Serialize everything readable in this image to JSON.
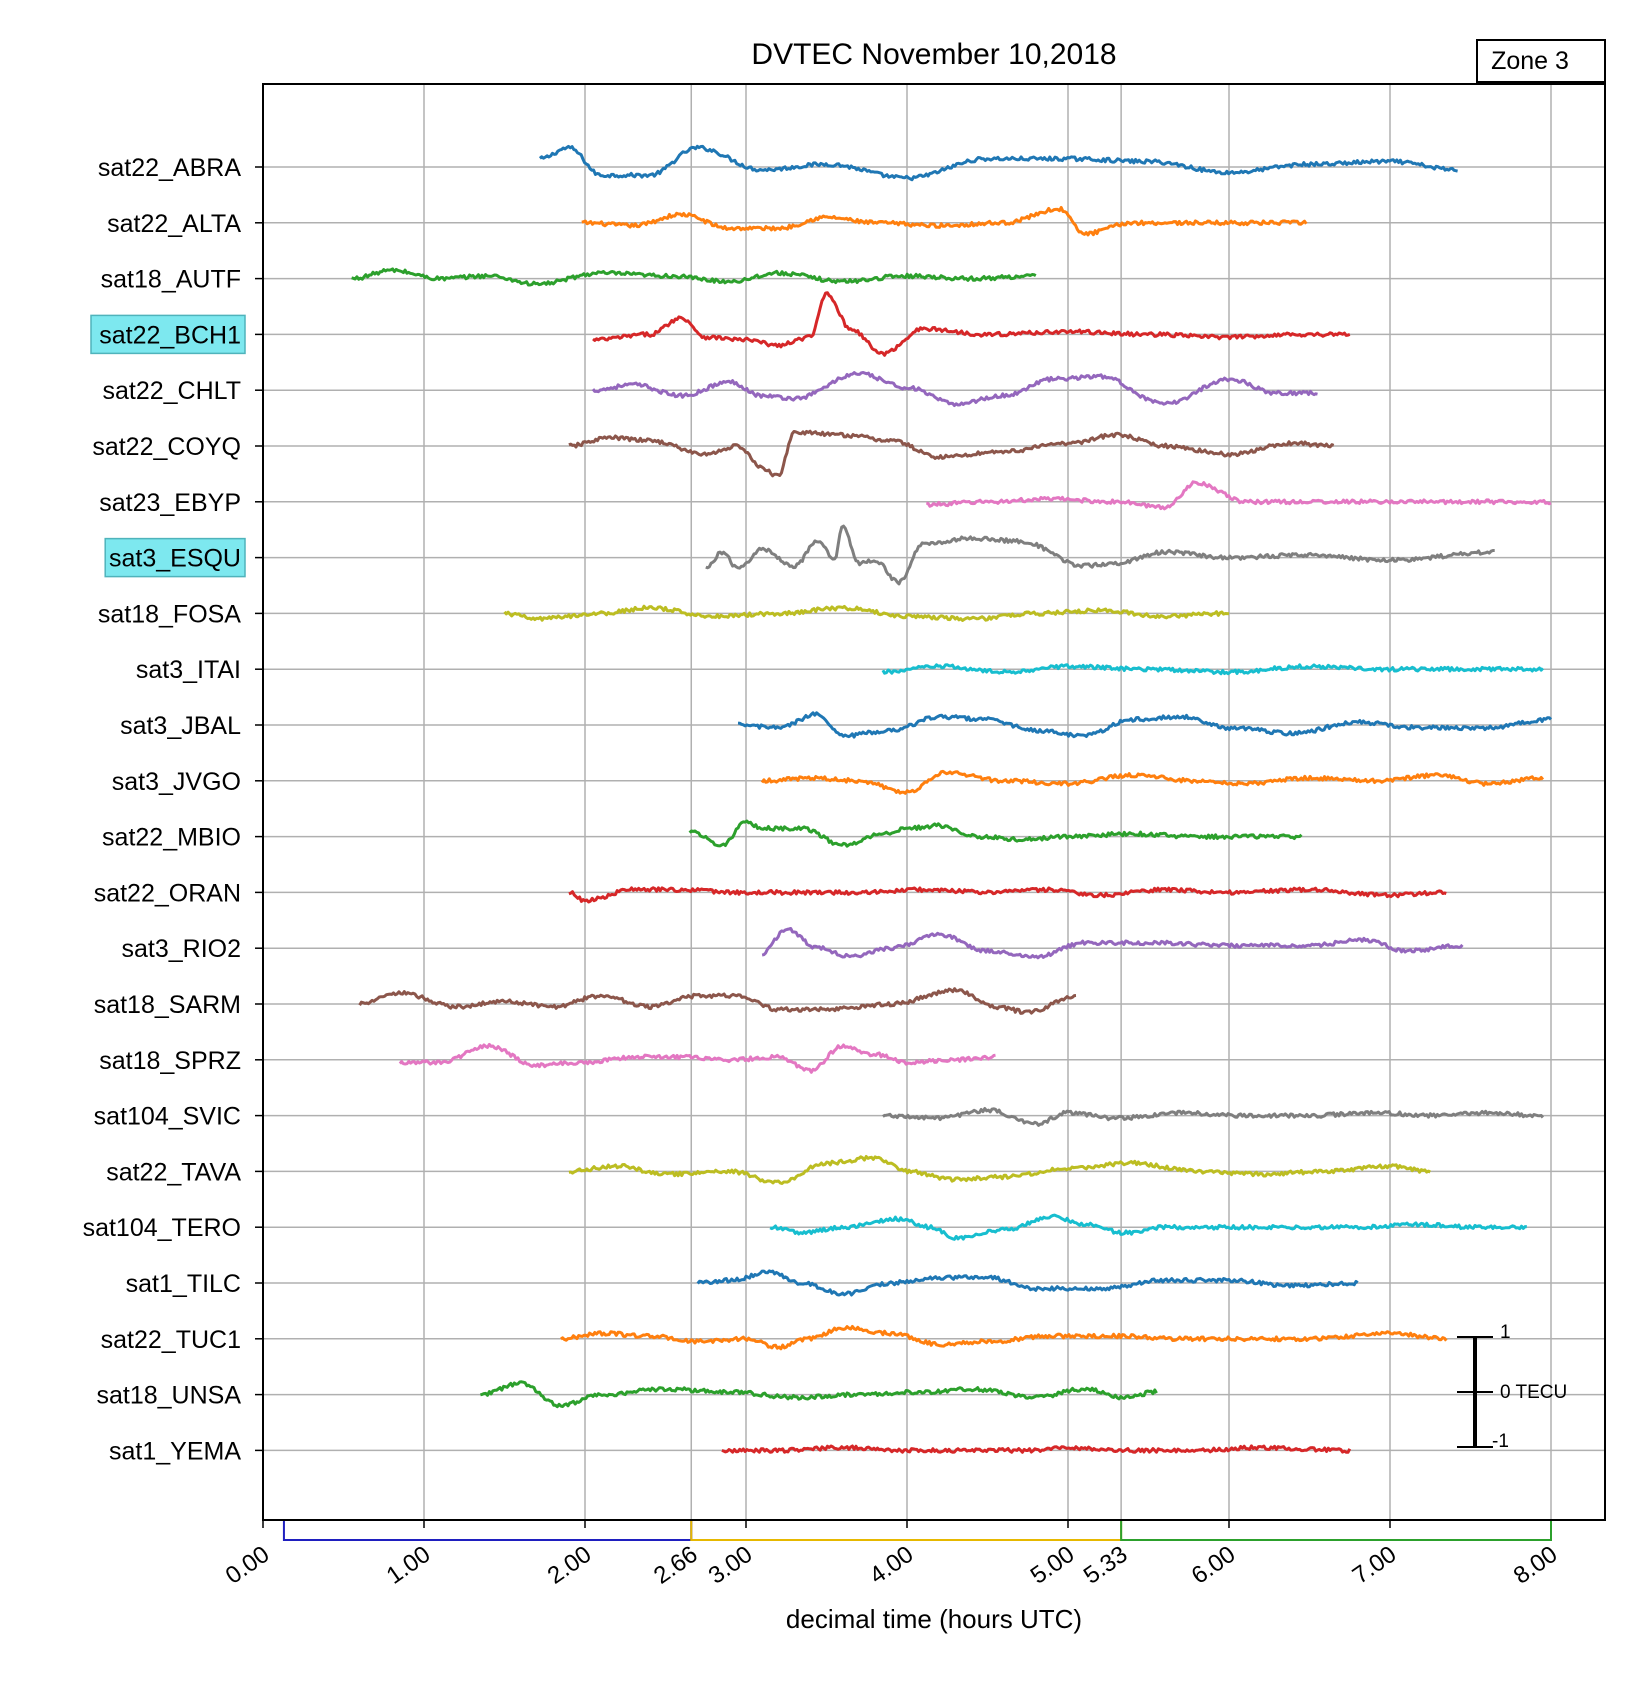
{
  "chart_data": {
    "type": "line",
    "title": "DVTEC November 10,2018",
    "zone_label": "Zone 3",
    "xlabel": "decimal time (hours UTC)",
    "xlim": [
      0,
      8
    ],
    "x_ticks": [
      "0.00",
      "1.00",
      "2.00",
      "2.66",
      "3.00",
      "4.00",
      "5.00",
      "5.33",
      "6.00",
      "7.00",
      "8.00"
    ],
    "grid": true,
    "period_brackets": [
      {
        "start": 0.13,
        "end": 2.66,
        "color": "#1f1fbf"
      },
      {
        "start": 2.66,
        "end": 5.33,
        "color": "#e6b800"
      },
      {
        "start": 5.33,
        "end": 8.0,
        "color": "#2ca02c"
      }
    ],
    "scale_bar": {
      "top_label": "1",
      "mid_label": "0 TECU",
      "bottom_label": "-1"
    },
    "series": [
      {
        "name": "sat22_ABRA",
        "highlight": false,
        "color": "#1f77b4",
        "x_range": [
          1.72,
          7.42
        ],
        "x": [
          1.72,
          1.9,
          2.1,
          2.4,
          2.7,
          3.1,
          3.5,
          4.0,
          4.5,
          5.0,
          5.5,
          6.0,
          6.5,
          7.0,
          7.42
        ],
        "y": [
          0.15,
          0.35,
          -0.15,
          -0.15,
          0.35,
          -0.05,
          0.05,
          -0.2,
          0.15,
          0.15,
          0.1,
          -0.1,
          0.05,
          0.1,
          -0.05
        ]
      },
      {
        "name": "sat22_ALTA",
        "highlight": false,
        "color": "#ff7f0e",
        "x_range": [
          1.98,
          6.48
        ],
        "x": [
          1.98,
          2.3,
          2.6,
          2.9,
          3.2,
          3.5,
          3.8,
          4.2,
          4.6,
          4.95,
          5.1,
          5.4,
          5.8,
          6.1,
          6.48
        ],
        "y": [
          0.0,
          -0.05,
          0.15,
          -0.1,
          -0.1,
          0.1,
          0.0,
          -0.05,
          0.0,
          0.25,
          -0.2,
          0.0,
          0.0,
          0.0,
          0.0
        ]
      },
      {
        "name": "sat18_AUTF",
        "highlight": false,
        "color": "#2ca02c",
        "x_range": [
          0.55,
          4.8
        ],
        "x": [
          0.55,
          0.8,
          1.1,
          1.4,
          1.7,
          2.1,
          2.5,
          2.9,
          3.2,
          3.6,
          4.0,
          4.4,
          4.8
        ],
        "y": [
          0.0,
          0.15,
          0.0,
          0.05,
          -0.1,
          0.1,
          0.05,
          -0.05,
          0.1,
          -0.05,
          0.05,
          0.0,
          0.05
        ]
      },
      {
        "name": "sat22_BCH1",
        "highlight": true,
        "color": "#d62728",
        "x_range": [
          2.05,
          6.75
        ],
        "x": [
          2.05,
          2.4,
          2.6,
          2.75,
          3.0,
          3.2,
          3.4,
          3.5,
          3.65,
          3.85,
          4.1,
          4.5,
          5.0,
          5.5,
          6.0,
          6.4,
          6.75
        ],
        "y": [
          -0.1,
          0.0,
          0.3,
          -0.05,
          -0.1,
          -0.2,
          -0.05,
          0.75,
          0.1,
          -0.35,
          0.1,
          0.0,
          0.05,
          0.0,
          -0.05,
          0.0,
          0.0
        ]
      },
      {
        "name": "sat22_CHLT",
        "highlight": false,
        "color": "#9467bd",
        "x_range": [
          2.05,
          6.55
        ],
        "x": [
          2.05,
          2.3,
          2.6,
          2.9,
          3.1,
          3.3,
          3.7,
          4.0,
          4.3,
          4.6,
          4.9,
          5.2,
          5.6,
          6.0,
          6.3,
          6.55
        ],
        "y": [
          0.0,
          0.1,
          -0.1,
          0.15,
          -0.1,
          -0.15,
          0.3,
          0.05,
          -0.25,
          -0.1,
          0.2,
          0.25,
          -0.25,
          0.2,
          -0.05,
          -0.05
        ]
      },
      {
        "name": "sat22_COYQ",
        "highlight": false,
        "color": "#8c564b",
        "x_range": [
          1.9,
          6.65
        ],
        "x": [
          1.9,
          2.15,
          2.4,
          2.75,
          2.95,
          3.1,
          3.2,
          3.3,
          3.6,
          3.9,
          4.2,
          4.6,
          5.0,
          5.3,
          5.6,
          6.0,
          6.4,
          6.65
        ],
        "y": [
          0.0,
          0.15,
          0.1,
          -0.15,
          0.0,
          -0.4,
          -0.55,
          0.25,
          0.2,
          0.1,
          -0.2,
          -0.1,
          0.05,
          0.2,
          0.0,
          -0.15,
          0.05,
          0.0
        ]
      },
      {
        "name": "sat23_EBYP",
        "highlight": false,
        "color": "#e377c2",
        "x_range": [
          4.12,
          8.0
        ],
        "x": [
          4.12,
          4.5,
          4.9,
          5.3,
          5.6,
          5.8,
          6.1,
          6.5,
          7.0,
          7.5,
          8.0
        ],
        "y": [
          -0.05,
          0.0,
          0.05,
          0.0,
          -0.1,
          0.35,
          0.0,
          0.0,
          0.0,
          0.0,
          0.0
        ]
      },
      {
        "name": "sat3_ESQU",
        "highlight": true,
        "color": "#7f7f7f",
        "x_range": [
          2.75,
          7.65
        ],
        "x": [
          2.75,
          2.85,
          2.95,
          3.1,
          3.3,
          3.45,
          3.55,
          3.6,
          3.7,
          3.8,
          3.95,
          4.1,
          4.4,
          4.7,
          5.1,
          5.3,
          5.6,
          6.0,
          6.5,
          7.0,
          7.65
        ],
        "y": [
          -0.2,
          0.1,
          -0.2,
          0.15,
          -0.15,
          0.3,
          -0.05,
          0.6,
          -0.1,
          -0.05,
          -0.45,
          0.25,
          0.35,
          0.3,
          -0.15,
          -0.1,
          0.1,
          0.0,
          0.05,
          -0.05,
          0.1
        ]
      },
      {
        "name": "sat18_FOSA",
        "highlight": false,
        "color": "#bcbd22",
        "x_range": [
          1.5,
          6.0
        ],
        "x": [
          1.5,
          1.7,
          2.1,
          2.4,
          2.8,
          3.2,
          3.6,
          4.0,
          4.4,
          4.8,
          5.2,
          5.6,
          6.0
        ],
        "y": [
          0.0,
          -0.1,
          0.0,
          0.1,
          -0.05,
          0.0,
          0.1,
          -0.05,
          -0.1,
          0.0,
          0.05,
          -0.05,
          0.0
        ]
      },
      {
        "name": "sat3_ITAI",
        "highlight": false,
        "color": "#17becf",
        "x_range": [
          3.85,
          7.95
        ],
        "x": [
          3.85,
          4.2,
          4.6,
          5.0,
          5.5,
          6.0,
          6.5,
          7.0,
          7.5,
          7.95
        ],
        "y": [
          -0.05,
          0.05,
          -0.05,
          0.05,
          0.0,
          -0.05,
          0.05,
          0.0,
          0.0,
          0.0
        ]
      },
      {
        "name": "sat3_JBAL",
        "highlight": false,
        "color": "#1f77b4",
        "x_range": [
          2.95,
          8.0
        ],
        "x": [
          2.95,
          3.2,
          3.45,
          3.6,
          3.9,
          4.2,
          4.5,
          4.8,
          5.1,
          5.4,
          5.7,
          6.0,
          6.4,
          6.8,
          7.2,
          7.6,
          8.0
        ],
        "y": [
          0.0,
          -0.05,
          0.2,
          -0.2,
          -0.1,
          0.15,
          0.1,
          -0.1,
          -0.2,
          0.1,
          0.15,
          -0.05,
          -0.15,
          0.05,
          -0.05,
          -0.05,
          0.1
        ]
      },
      {
        "name": "sat3_JVGO",
        "highlight": false,
        "color": "#ff7f0e",
        "x_range": [
          3.1,
          7.95
        ],
        "x": [
          3.1,
          3.4,
          3.7,
          4.0,
          4.25,
          4.6,
          5.0,
          5.4,
          5.8,
          6.1,
          6.5,
          6.9,
          7.3,
          7.6,
          7.95
        ],
        "y": [
          0.0,
          0.05,
          0.0,
          -0.2,
          0.15,
          0.0,
          -0.05,
          0.1,
          0.0,
          -0.05,
          0.05,
          0.0,
          0.1,
          -0.05,
          0.05
        ]
      },
      {
        "name": "sat22_MBIO",
        "highlight": false,
        "color": "#2ca02c",
        "x_range": [
          2.65,
          6.45
        ],
        "x": [
          2.65,
          2.85,
          3.0,
          3.1,
          3.35,
          3.6,
          3.85,
          4.0,
          4.2,
          4.45,
          4.7,
          5.0,
          5.4,
          5.8,
          6.1,
          6.45
        ],
        "y": [
          0.1,
          -0.15,
          0.25,
          0.15,
          0.15,
          -0.15,
          0.05,
          0.15,
          0.2,
          0.0,
          -0.05,
          0.0,
          0.05,
          0.0,
          0.0,
          0.0
        ]
      },
      {
        "name": "sat22_ORAN",
        "highlight": false,
        "color": "#d62728",
        "x_range": [
          1.9,
          7.35
        ],
        "x": [
          1.9,
          2.0,
          2.3,
          2.6,
          2.9,
          3.3,
          3.7,
          4.1,
          4.5,
          4.9,
          5.2,
          5.6,
          6.0,
          6.5,
          7.0,
          7.35
        ],
        "y": [
          0.0,
          -0.15,
          0.05,
          0.05,
          0.0,
          0.0,
          0.0,
          0.05,
          0.0,
          0.05,
          -0.05,
          0.05,
          0.0,
          0.05,
          -0.05,
          0.0
        ]
      },
      {
        "name": "sat3_RIO2",
        "highlight": false,
        "color": "#9467bd",
        "x_range": [
          3.1,
          7.45
        ],
        "x": [
          3.1,
          3.25,
          3.45,
          3.65,
          3.9,
          4.2,
          4.5,
          4.8,
          5.1,
          5.5,
          6.0,
          6.5,
          6.85,
          7.1,
          7.45
        ],
        "y": [
          -0.1,
          0.35,
          0.0,
          -0.15,
          0.0,
          0.25,
          -0.05,
          -0.15,
          0.1,
          0.1,
          0.05,
          0.05,
          0.15,
          -0.05,
          0.05
        ]
      },
      {
        "name": "sat18_SARM",
        "highlight": false,
        "color": "#8c564b",
        "x_range": [
          0.6,
          5.05
        ],
        "x": [
          0.6,
          0.85,
          1.2,
          1.5,
          1.8,
          2.1,
          2.4,
          2.7,
          2.95,
          3.2,
          3.5,
          3.9,
          4.3,
          4.55,
          4.75,
          5.05
        ],
        "y": [
          0.0,
          0.2,
          -0.05,
          0.05,
          -0.05,
          0.15,
          -0.05,
          0.15,
          0.15,
          -0.1,
          -0.1,
          0.0,
          0.25,
          -0.05,
          -0.15,
          0.15
        ]
      },
      {
        "name": "sat18_SPRZ",
        "highlight": false,
        "color": "#e377c2",
        "x_range": [
          0.85,
          4.55
        ],
        "x": [
          0.85,
          1.1,
          1.4,
          1.7,
          2.0,
          2.3,
          2.6,
          2.9,
          3.2,
          3.4,
          3.6,
          3.8,
          4.0,
          4.3,
          4.55
        ],
        "y": [
          -0.05,
          -0.05,
          0.25,
          -0.1,
          -0.05,
          0.05,
          0.05,
          0.0,
          0.05,
          -0.2,
          0.25,
          0.1,
          -0.05,
          0.0,
          0.05
        ]
      },
      {
        "name": "sat104_SVIC",
        "highlight": false,
        "color": "#7f7f7f",
        "x_range": [
          3.85,
          7.95
        ],
        "x": [
          3.85,
          4.2,
          4.5,
          4.8,
          5.0,
          5.3,
          5.7,
          6.1,
          6.5,
          6.9,
          7.3,
          7.6,
          7.95
        ],
        "y": [
          0.0,
          -0.05,
          0.1,
          -0.15,
          0.05,
          -0.05,
          0.05,
          0.0,
          0.0,
          0.05,
          0.0,
          0.05,
          0.0
        ]
      },
      {
        "name": "sat22_TAVA",
        "highlight": false,
        "color": "#bcbd22",
        "x_range": [
          1.9,
          7.25
        ],
        "x": [
          1.9,
          2.2,
          2.5,
          2.9,
          3.2,
          3.5,
          3.8,
          4.0,
          4.3,
          4.6,
          5.0,
          5.4,
          5.8,
          6.2,
          6.6,
          7.0,
          7.25
        ],
        "y": [
          0.0,
          0.1,
          -0.05,
          0.0,
          -0.2,
          0.15,
          0.25,
          0.0,
          -0.15,
          -0.1,
          0.05,
          0.15,
          0.0,
          -0.05,
          0.0,
          0.1,
          0.0
        ]
      },
      {
        "name": "sat104_TERO",
        "highlight": false,
        "color": "#17becf",
        "x_range": [
          3.15,
          7.85
        ],
        "x": [
          3.15,
          3.35,
          3.6,
          3.95,
          4.15,
          4.3,
          4.6,
          4.9,
          5.1,
          5.35,
          5.6,
          6.0,
          6.4,
          6.8,
          7.2,
          7.5,
          7.85
        ],
        "y": [
          0.0,
          -0.1,
          0.0,
          0.15,
          0.0,
          -0.2,
          -0.05,
          0.2,
          0.05,
          -0.1,
          0.0,
          0.0,
          0.0,
          0.0,
          0.05,
          0.0,
          0.0
        ]
      },
      {
        "name": "sat1_TILC",
        "highlight": false,
        "color": "#1f77b4",
        "x_range": [
          2.7,
          6.8
        ],
        "x": [
          2.7,
          2.9,
          3.15,
          3.35,
          3.6,
          3.9,
          4.2,
          4.5,
          4.8,
          5.2,
          5.6,
          6.0,
          6.4,
          6.8
        ],
        "y": [
          0.0,
          0.05,
          0.2,
          0.0,
          -0.2,
          0.0,
          0.1,
          0.1,
          -0.1,
          -0.1,
          0.05,
          0.05,
          -0.05,
          0.0
        ]
      },
      {
        "name": "sat22_TUC1",
        "highlight": false,
        "color": "#ff7f0e",
        "x_range": [
          1.85,
          7.35
        ],
        "x": [
          1.85,
          2.1,
          2.4,
          2.7,
          3.0,
          3.2,
          3.4,
          3.6,
          3.9,
          4.2,
          4.5,
          4.9,
          5.3,
          5.7,
          6.1,
          6.5,
          7.0,
          7.35
        ],
        "y": [
          0.0,
          0.1,
          0.05,
          -0.05,
          0.0,
          -0.15,
          0.0,
          0.2,
          0.1,
          -0.1,
          -0.05,
          0.05,
          0.05,
          0.0,
          0.0,
          0.0,
          0.1,
          0.0
        ]
      },
      {
        "name": "sat18_UNSA",
        "highlight": false,
        "color": "#2ca02c",
        "x_range": [
          1.35,
          5.55
        ],
        "x": [
          1.35,
          1.6,
          1.85,
          2.1,
          2.5,
          2.9,
          3.3,
          3.7,
          4.1,
          4.4,
          4.8,
          5.1,
          5.35,
          5.55
        ],
        "y": [
          0.0,
          0.2,
          -0.2,
          0.0,
          0.1,
          0.05,
          -0.05,
          0.0,
          0.05,
          0.1,
          -0.05,
          0.1,
          -0.05,
          0.05
        ]
      },
      {
        "name": "sat1_YEMA",
        "highlight": false,
        "color": "#d62728",
        "x_range": [
          2.85,
          6.75
        ],
        "x": [
          2.85,
          3.2,
          3.6,
          4.0,
          4.4,
          4.8,
          5.0,
          5.4,
          5.8,
          6.2,
          6.75
        ],
        "y": [
          0.0,
          0.0,
          0.05,
          0.0,
          0.0,
          0.0,
          0.05,
          0.0,
          0.0,
          0.05,
          0.0
        ]
      }
    ]
  }
}
